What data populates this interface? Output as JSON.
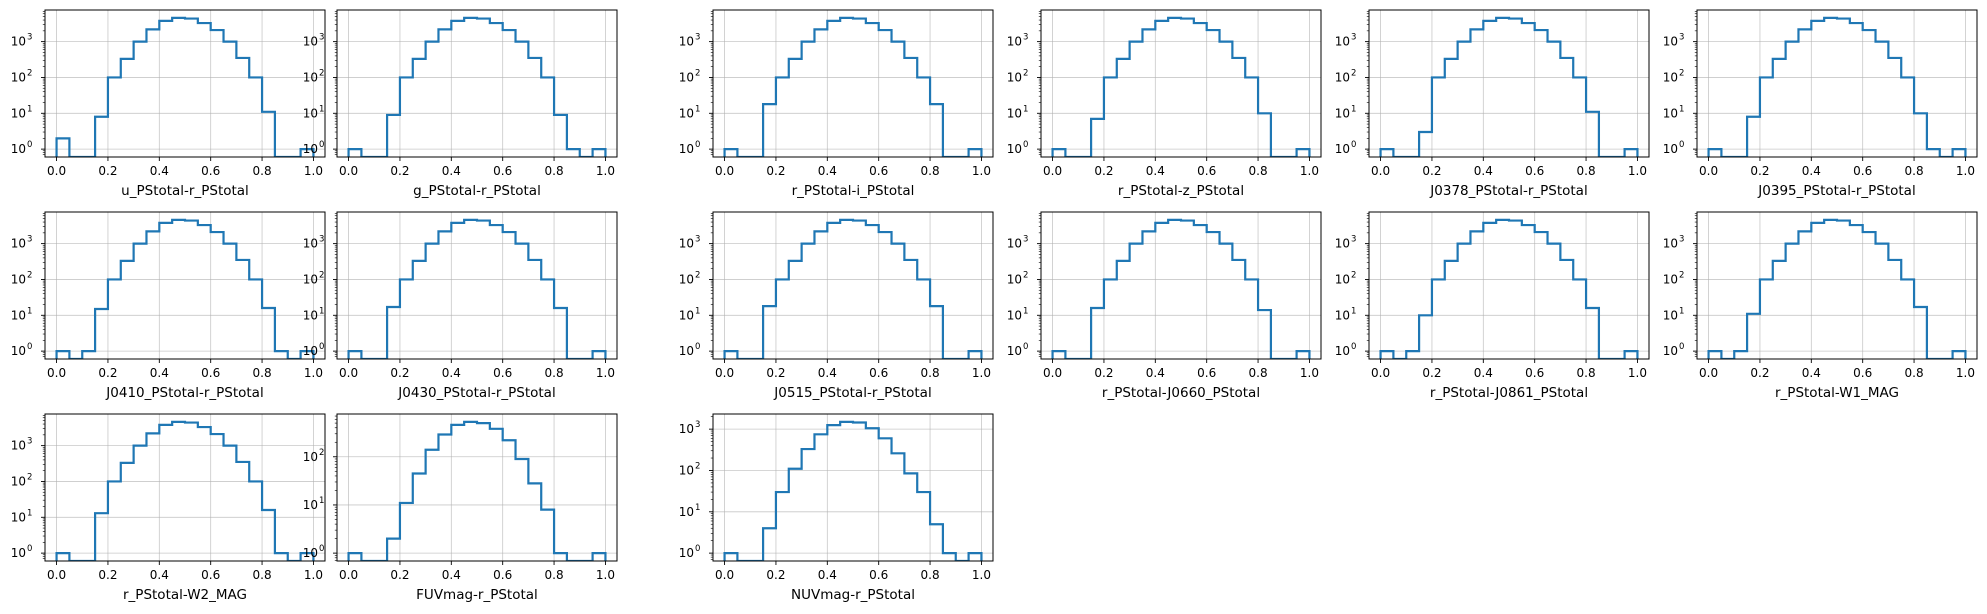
{
  "chart_data": [
    {
      "type": "histogram",
      "xlabel": "u_PStotal-r_PStotal",
      "scale": "log",
      "xticks": [
        "0.0",
        "0.2",
        "0.4",
        "0.6",
        "0.8",
        "1.0"
      ],
      "ytick_exponents": [
        0,
        1,
        2,
        3
      ],
      "bin_edges": [
        0,
        0.05,
        0.1,
        0.15,
        0.2,
        0.25,
        0.3,
        0.35,
        0.4,
        0.45,
        0.5,
        0.55,
        0.6,
        0.65,
        0.7,
        0.75,
        0.8,
        0.85,
        0.9,
        0.95,
        1.0
      ],
      "counts": [
        2,
        0,
        0,
        8,
        100,
        330,
        1000,
        2200,
        3800,
        4600,
        4400,
        3300,
        2100,
        1000,
        350,
        100,
        11,
        0,
        0,
        1
      ],
      "color": "#1f77b4",
      "grid": true
    },
    {
      "type": "histogram",
      "xlabel": "g_PStotal-r_PStotal",
      "scale": "log",
      "xticks": [
        "0.0",
        "0.2",
        "0.4",
        "0.6",
        "0.8",
        "1.0"
      ],
      "ytick_exponents": [
        0,
        1,
        2,
        3
      ],
      "bin_edges": [
        0,
        0.05,
        0.1,
        0.15,
        0.2,
        0.25,
        0.3,
        0.35,
        0.4,
        0.45,
        0.5,
        0.55,
        0.6,
        0.65,
        0.7,
        0.75,
        0.8,
        0.85,
        0.9,
        0.95,
        1.0
      ],
      "counts": [
        1,
        0,
        0,
        9,
        100,
        330,
        1000,
        2200,
        3800,
        4600,
        4400,
        3300,
        2100,
        1000,
        350,
        100,
        9,
        1,
        0,
        1
      ],
      "color": "#1f77b4",
      "grid": true
    },
    {
      "type": "histogram",
      "xlabel": "r_PStotal-i_PStotal",
      "scale": "log",
      "xticks": [
        "0.0",
        "0.2",
        "0.4",
        "0.6",
        "0.8",
        "1.0"
      ],
      "ytick_exponents": [
        0,
        1,
        2,
        3
      ],
      "bin_edges": [
        0,
        0.05,
        0.1,
        0.15,
        0.2,
        0.25,
        0.3,
        0.35,
        0.4,
        0.45,
        0.5,
        0.55,
        0.6,
        0.65,
        0.7,
        0.75,
        0.8,
        0.85,
        0.9,
        0.95,
        1.0
      ],
      "counts": [
        1,
        0,
        0,
        18,
        100,
        330,
        1000,
        2200,
        3800,
        4600,
        4400,
        3300,
        2100,
        1000,
        350,
        100,
        18,
        0,
        0,
        1
      ],
      "color": "#1f77b4",
      "grid": true
    },
    {
      "type": "histogram",
      "xlabel": "r_PStotal-z_PStotal",
      "scale": "log",
      "xticks": [
        "0.0",
        "0.2",
        "0.4",
        "0.6",
        "0.8",
        "1.0"
      ],
      "ytick_exponents": [
        0,
        1,
        2,
        3
      ],
      "bin_edges": [
        0,
        0.05,
        0.1,
        0.15,
        0.2,
        0.25,
        0.3,
        0.35,
        0.4,
        0.45,
        0.5,
        0.55,
        0.6,
        0.65,
        0.7,
        0.75,
        0.8,
        0.85,
        0.9,
        0.95,
        1.0
      ],
      "counts": [
        1,
        0,
        0,
        7,
        100,
        330,
        1000,
        2200,
        3800,
        4600,
        4400,
        3300,
        2100,
        1000,
        350,
        100,
        10,
        0,
        0,
        1
      ],
      "color": "#1f77b4",
      "grid": true
    },
    {
      "type": "histogram",
      "xlabel": "J0378_PStotal-r_PStotal",
      "scale": "log",
      "xticks": [
        "0.0",
        "0.2",
        "0.4",
        "0.6",
        "0.8",
        "1.0"
      ],
      "ytick_exponents": [
        0,
        1,
        2,
        3
      ],
      "bin_edges": [
        0,
        0.05,
        0.1,
        0.15,
        0.2,
        0.25,
        0.3,
        0.35,
        0.4,
        0.45,
        0.5,
        0.55,
        0.6,
        0.65,
        0.7,
        0.75,
        0.8,
        0.85,
        0.9,
        0.95,
        1.0
      ],
      "counts": [
        1,
        0,
        0,
        3,
        100,
        330,
        1000,
        2200,
        3800,
        4600,
        4400,
        3300,
        2100,
        1000,
        350,
        100,
        11,
        0,
        0,
        1
      ],
      "color": "#1f77b4",
      "grid": true
    },
    {
      "type": "histogram",
      "xlabel": "J0395_PStotal-r_PStotal",
      "scale": "log",
      "xticks": [
        "0.0",
        "0.2",
        "0.4",
        "0.6",
        "0.8",
        "1.0"
      ],
      "ytick_exponents": [
        0,
        1,
        2,
        3
      ],
      "bin_edges": [
        0,
        0.05,
        0.1,
        0.15,
        0.2,
        0.25,
        0.3,
        0.35,
        0.4,
        0.45,
        0.5,
        0.55,
        0.6,
        0.65,
        0.7,
        0.75,
        0.8,
        0.85,
        0.9,
        0.95,
        1.0
      ],
      "counts": [
        1,
        0,
        0,
        8,
        100,
        330,
        1000,
        2200,
        3800,
        4600,
        4400,
        3300,
        2100,
        1000,
        350,
        100,
        10,
        1,
        0,
        1
      ],
      "color": "#1f77b4",
      "grid": true
    },
    {
      "type": "histogram",
      "xlabel": "J0410_PStotal-r_PStotal",
      "scale": "log",
      "xticks": [
        "0.0",
        "0.2",
        "0.4",
        "0.6",
        "0.8",
        "1.0"
      ],
      "ytick_exponents": [
        0,
        1,
        2,
        3
      ],
      "bin_edges": [
        0,
        0.05,
        0.1,
        0.15,
        0.2,
        0.25,
        0.3,
        0.35,
        0.4,
        0.45,
        0.5,
        0.55,
        0.6,
        0.65,
        0.7,
        0.75,
        0.8,
        0.85,
        0.9,
        0.95,
        1.0
      ],
      "counts": [
        1,
        0,
        1,
        15,
        100,
        330,
        1000,
        2200,
        3800,
        4600,
        4400,
        3300,
        2100,
        1000,
        350,
        100,
        16,
        1,
        0,
        1
      ],
      "color": "#1f77b4",
      "grid": true
    },
    {
      "type": "histogram",
      "xlabel": "J0430_PStotal-r_PStotal",
      "scale": "log",
      "xticks": [
        "0.0",
        "0.2",
        "0.4",
        "0.6",
        "0.8",
        "1.0"
      ],
      "ytick_exponents": [
        0,
        1,
        2,
        3
      ],
      "bin_edges": [
        0,
        0.05,
        0.1,
        0.15,
        0.2,
        0.25,
        0.3,
        0.35,
        0.4,
        0.45,
        0.5,
        0.55,
        0.6,
        0.65,
        0.7,
        0.75,
        0.8,
        0.85,
        0.9,
        0.95,
        1.0
      ],
      "counts": [
        1,
        0,
        0,
        17,
        100,
        330,
        1000,
        2200,
        3800,
        4600,
        4400,
        3300,
        2100,
        1000,
        350,
        100,
        16,
        0,
        0,
        1
      ],
      "color": "#1f77b4",
      "grid": true
    },
    {
      "type": "histogram",
      "xlabel": "J0515_PStotal-r_PStotal",
      "scale": "log",
      "xticks": [
        "0.0",
        "0.2",
        "0.4",
        "0.6",
        "0.8",
        "1.0"
      ],
      "ytick_exponents": [
        0,
        1,
        2,
        3
      ],
      "bin_edges": [
        0,
        0.05,
        0.1,
        0.15,
        0.2,
        0.25,
        0.3,
        0.35,
        0.4,
        0.45,
        0.5,
        0.55,
        0.6,
        0.65,
        0.7,
        0.75,
        0.8,
        0.85,
        0.9,
        0.95,
        1.0
      ],
      "counts": [
        1,
        0,
        0,
        18,
        100,
        330,
        1000,
        2200,
        3800,
        4600,
        4400,
        3300,
        2100,
        1000,
        350,
        100,
        18,
        0,
        0,
        1
      ],
      "color": "#1f77b4",
      "grid": true
    },
    {
      "type": "histogram",
      "xlabel": "r_PStotal-J0660_PStotal",
      "scale": "log",
      "xticks": [
        "0.0",
        "0.2",
        "0.4",
        "0.6",
        "0.8",
        "1.0"
      ],
      "ytick_exponents": [
        0,
        1,
        2,
        3
      ],
      "bin_edges": [
        0,
        0.05,
        0.1,
        0.15,
        0.2,
        0.25,
        0.3,
        0.35,
        0.4,
        0.45,
        0.5,
        0.55,
        0.6,
        0.65,
        0.7,
        0.75,
        0.8,
        0.85,
        0.9,
        0.95,
        1.0
      ],
      "counts": [
        1,
        0,
        0,
        16,
        100,
        330,
        1000,
        2200,
        3800,
        4600,
        4400,
        3300,
        2100,
        1000,
        350,
        100,
        14,
        0,
        0,
        1
      ],
      "color": "#1f77b4",
      "grid": true
    },
    {
      "type": "histogram",
      "xlabel": "r_PStotal-J0861_PStotal",
      "scale": "log",
      "xticks": [
        "0.0",
        "0.2",
        "0.4",
        "0.6",
        "0.8",
        "1.0"
      ],
      "ytick_exponents": [
        0,
        1,
        2,
        3
      ],
      "bin_edges": [
        0,
        0.05,
        0.1,
        0.15,
        0.2,
        0.25,
        0.3,
        0.35,
        0.4,
        0.45,
        0.5,
        0.55,
        0.6,
        0.65,
        0.7,
        0.75,
        0.8,
        0.85,
        0.9,
        0.95,
        1.0
      ],
      "counts": [
        1,
        0,
        1,
        10,
        100,
        330,
        1000,
        2200,
        3800,
        4600,
        4400,
        3300,
        2100,
        1000,
        350,
        100,
        16,
        0,
        0,
        1
      ],
      "color": "#1f77b4",
      "grid": true
    },
    {
      "type": "histogram",
      "xlabel": "r_PStotal-W1_MAG",
      "scale": "log",
      "xticks": [
        "0.0",
        "0.2",
        "0.4",
        "0.6",
        "0.8",
        "1.0"
      ],
      "ytick_exponents": [
        0,
        1,
        2,
        3
      ],
      "bin_edges": [
        0,
        0.05,
        0.1,
        0.15,
        0.2,
        0.25,
        0.3,
        0.35,
        0.4,
        0.45,
        0.5,
        0.55,
        0.6,
        0.65,
        0.7,
        0.75,
        0.8,
        0.85,
        0.9,
        0.95,
        1.0
      ],
      "counts": [
        1,
        0,
        1,
        11,
        100,
        330,
        1000,
        2200,
        3800,
        4600,
        4400,
        3300,
        2100,
        1000,
        350,
        100,
        17,
        0,
        0,
        1
      ],
      "color": "#1f77b4",
      "grid": true
    },
    {
      "type": "histogram",
      "xlabel": "r_PStotal-W2_MAG",
      "scale": "log",
      "xticks": [
        "0.0",
        "0.2",
        "0.4",
        "0.6",
        "0.8",
        "1.0"
      ],
      "ytick_exponents": [
        0,
        1,
        2,
        3
      ],
      "bin_edges": [
        0,
        0.05,
        0.1,
        0.15,
        0.2,
        0.25,
        0.3,
        0.35,
        0.4,
        0.45,
        0.5,
        0.55,
        0.6,
        0.65,
        0.7,
        0.75,
        0.8,
        0.85,
        0.9,
        0.95,
        1.0
      ],
      "counts": [
        1,
        0,
        0,
        13,
        100,
        330,
        1000,
        2200,
        3800,
        4600,
        4400,
        3300,
        2100,
        1000,
        350,
        100,
        16,
        1,
        0,
        1
      ],
      "color": "#1f77b4",
      "grid": true
    },
    {
      "type": "histogram",
      "xlabel": "FUVmag-r_PStotal",
      "scale": "log",
      "xticks": [
        "0.0",
        "0.2",
        "0.4",
        "0.6",
        "0.8",
        "1.0"
      ],
      "ytick_exponents": [
        0,
        1,
        2
      ],
      "bin_edges": [
        0,
        0.05,
        0.1,
        0.15,
        0.2,
        0.25,
        0.3,
        0.35,
        0.4,
        0.45,
        0.5,
        0.55,
        0.6,
        0.65,
        0.7,
        0.75,
        0.8,
        0.85,
        0.9,
        0.95,
        1.0
      ],
      "counts": [
        1,
        0,
        0,
        2,
        11,
        45,
        140,
        290,
        460,
        530,
        500,
        380,
        220,
        90,
        28,
        8,
        1,
        0,
        0,
        1
      ],
      "color": "#1f77b4",
      "grid": true
    },
    {
      "type": "histogram",
      "xlabel": "NUVmag-r_PStotal",
      "scale": "log",
      "xticks": [
        "0.0",
        "0.2",
        "0.4",
        "0.6",
        "0.8",
        "1.0"
      ],
      "ytick_exponents": [
        0,
        1,
        2,
        3
      ],
      "bin_edges": [
        0,
        0.05,
        0.1,
        0.15,
        0.2,
        0.25,
        0.3,
        0.35,
        0.4,
        0.45,
        0.5,
        0.55,
        0.6,
        0.65,
        0.7,
        0.75,
        0.8,
        0.85,
        0.9,
        0.95,
        1.0
      ],
      "counts": [
        1,
        0,
        0,
        4,
        30,
        110,
        330,
        750,
        1250,
        1500,
        1450,
        1050,
        600,
        260,
        85,
        30,
        5,
        1,
        0,
        1
      ],
      "color": "#1f77b4",
      "grid": true
    }
  ]
}
